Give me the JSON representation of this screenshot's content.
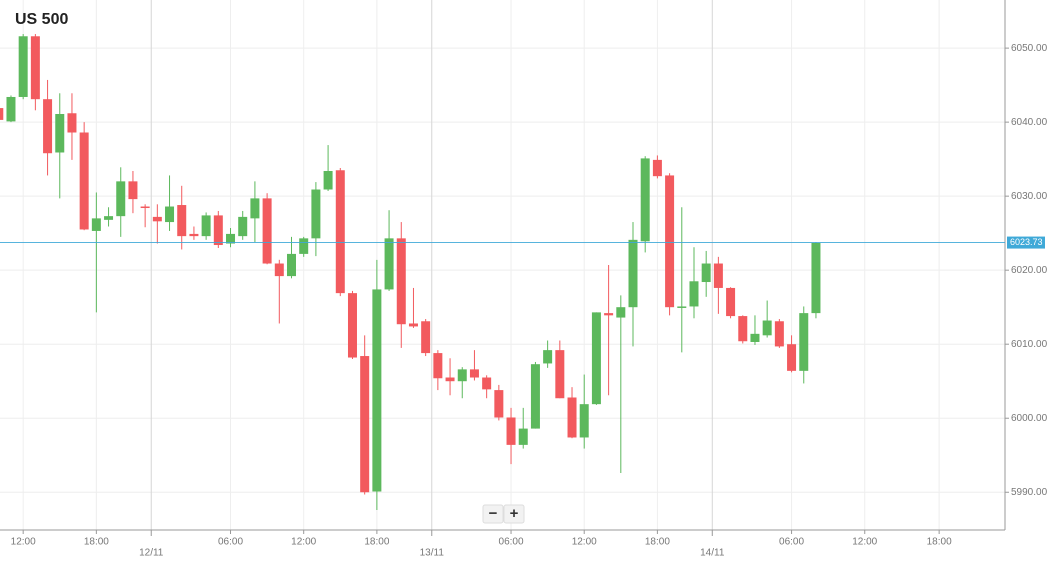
{
  "chart_data": {
    "type": "candlestick",
    "title": "US 500",
    "up_color": "#5cb85c",
    "down_color": "#f25a5e",
    "open": [
      6041.9,
      6040.1,
      6043.4,
      6051.6,
      6043.1,
      6035.9,
      6041.2,
      6038.6,
      6025.3,
      6026.8,
      6027.3,
      6032.0,
      6028.6,
      6027.2,
      6026.5,
      6028.8,
      6024.9,
      6024.6,
      6027.4,
      6023.6,
      6024.6,
      6027.0,
      6029.7,
      6020.9,
      6019.2,
      6022.2,
      6024.3,
      6030.9,
      6033.5,
      6016.9,
      6008.4,
      5990.1,
      6017.4,
      6024.3,
      6012.8,
      6013.1,
      6008.8,
      6005.5,
      6005.0,
      6006.6,
      6005.5,
      6003.8,
      6000.1,
      5996.4,
      5998.6,
      6007.4,
      6009.2,
      6002.8,
      5997.4,
      6001.9,
      6014.2,
      6013.6,
      6015.0,
      6023.9,
      6034.9,
      6032.8,
      6015.0,
      6015.1,
      6018.4,
      6020.9,
      6017.6,
      6013.8,
      6010.3,
      6011.2,
      6013.1,
      6010.0,
      6006.4,
      6014.2
    ],
    "high": [
      6042.2,
      6043.6,
      6051.9,
      6051.9,
      6045.7,
      6043.9,
      6043.9,
      6040.0,
      6030.5,
      6028.5,
      6033.9,
      6033.4,
      6028.9,
      6028.9,
      6032.8,
      6031.4,
      6025.9,
      6027.8,
      6028.0,
      6025.7,
      6028.0,
      6032.0,
      6030.4,
      6021.4,
      6024.5,
      6024.5,
      6031.9,
      6036.9,
      6033.8,
      6017.2,
      6011.2,
      6021.4,
      6028.1,
      6026.5,
      6017.6,
      6013.4,
      6009.2,
      6008.1,
      6006.9,
      6009.2,
      6005.8,
      6004.5,
      6001.4,
      6001.4,
      6007.6,
      6010.5,
      6010.5,
      6004.2,
      6005.9,
      6014.3,
      6020.7,
      6016.6,
      6026.5,
      6035.4,
      6035.5,
      6033.1,
      6028.5,
      6023.1,
      6022.6,
      6021.8,
      6017.7,
      6013.9,
      6013.9,
      6015.9,
      6013.4,
      6011.2,
      6015.1,
      6023.8
    ],
    "low": [
      6040.0,
      6040.0,
      6043.1,
      6041.6,
      6032.8,
      6029.7,
      6034.9,
      6025.4,
      6014.3,
      6025.9,
      6024.5,
      6027.7,
      6025.8,
      6023.6,
      6025.3,
      6022.8,
      6024.1,
      6024.1,
      6023.0,
      6023.1,
      6024.1,
      6023.8,
      6020.8,
      6012.8,
      6018.9,
      6021.8,
      6021.9,
      6030.7,
      6016.5,
      6008.0,
      5989.7,
      5987.6,
      6017.2,
      6009.5,
      6012.2,
      6008.4,
      6003.8,
      6003.1,
      6002.7,
      6005.1,
      6002.7,
      5999.7,
      5993.8,
      5995.9,
      5998.6,
      6006.8,
      6002.7,
      5997.3,
      5995.9,
      6001.8,
      6003.1,
      5992.6,
      6009.7,
      6022.4,
      6032.4,
      6013.9,
      6008.9,
      6013.5,
      6016.4,
      6014.1,
      6013.5,
      6010.1,
      6009.9,
      6010.9,
      6009.5,
      6006.2,
      6004.7,
      6013.5
    ],
    "close": [
      6040.3,
      6043.4,
      6051.6,
      6043.1,
      6035.8,
      6041.1,
      6038.6,
      6025.5,
      6027.0,
      6027.3,
      6032.0,
      6029.6,
      6028.4,
      6026.6,
      6028.6,
      6024.6,
      6024.6,
      6027.4,
      6023.4,
      6024.9,
      6027.2,
      6029.7,
      6020.9,
      6019.2,
      6022.2,
      6024.3,
      6030.9,
      6033.4,
      6016.9,
      6008.2,
      5990.0,
      6017.4,
      6024.3,
      6012.7,
      6012.4,
      6008.8,
      6005.4,
      6005.0,
      6006.6,
      6005.5,
      6003.9,
      6000.1,
      5996.4,
      5998.6,
      6007.3,
      6009.2,
      6002.7,
      5997.4,
      6001.9,
      6014.3,
      6013.9,
      6015.0,
      6024.1,
      6035.1,
      6032.7,
      6015.0,
      6015.1,
      6018.5,
      6020.9,
      6017.6,
      6013.8,
      6010.4,
      6011.4,
      6013.2,
      6009.7,
      6006.4,
      6014.2,
      6023.73
    ],
    "current_price": {
      "value": 6023.73,
      "label": "6023.73",
      "color": "#3fa9d8"
    },
    "xlim": [
      0.1,
      82.5
    ],
    "ylim": [
      5984.9,
      6056.5
    ],
    "yticks": [
      {
        "value": 6050,
        "label": "6050.00"
      },
      {
        "value": 6040,
        "label": "6040.00"
      },
      {
        "value": 6030,
        "label": "6030.00"
      },
      {
        "value": 6020,
        "label": "6020.00"
      },
      {
        "value": 6010,
        "label": "6010.00"
      },
      {
        "value": 6000,
        "label": "6000.00"
      },
      {
        "value": 5990,
        "label": "5990.00"
      }
    ],
    "xticks": [
      {
        "value": 2,
        "label": "12:00"
      },
      {
        "value": 8,
        "label": "18:00"
      },
      {
        "value": 19,
        "label": "06:00"
      },
      {
        "value": 25,
        "label": "12:00"
      },
      {
        "value": 31,
        "label": "18:00"
      },
      {
        "value": 42,
        "label": "06:00"
      },
      {
        "value": 48,
        "label": "12:00"
      },
      {
        "value": 54,
        "label": "18:00"
      },
      {
        "value": 65,
        "label": "06:00"
      },
      {
        "value": 71,
        "label": "12:00"
      },
      {
        "value": 77.1,
        "label": "18:00"
      }
    ],
    "date_ticks": [
      {
        "value": 12.5,
        "label": "12/11"
      },
      {
        "value": 35.5,
        "label": "13/11"
      },
      {
        "value": 58.5,
        "label": "14/11"
      }
    ],
    "grid": true,
    "zoom_out": "−",
    "zoom_in": "+"
  }
}
